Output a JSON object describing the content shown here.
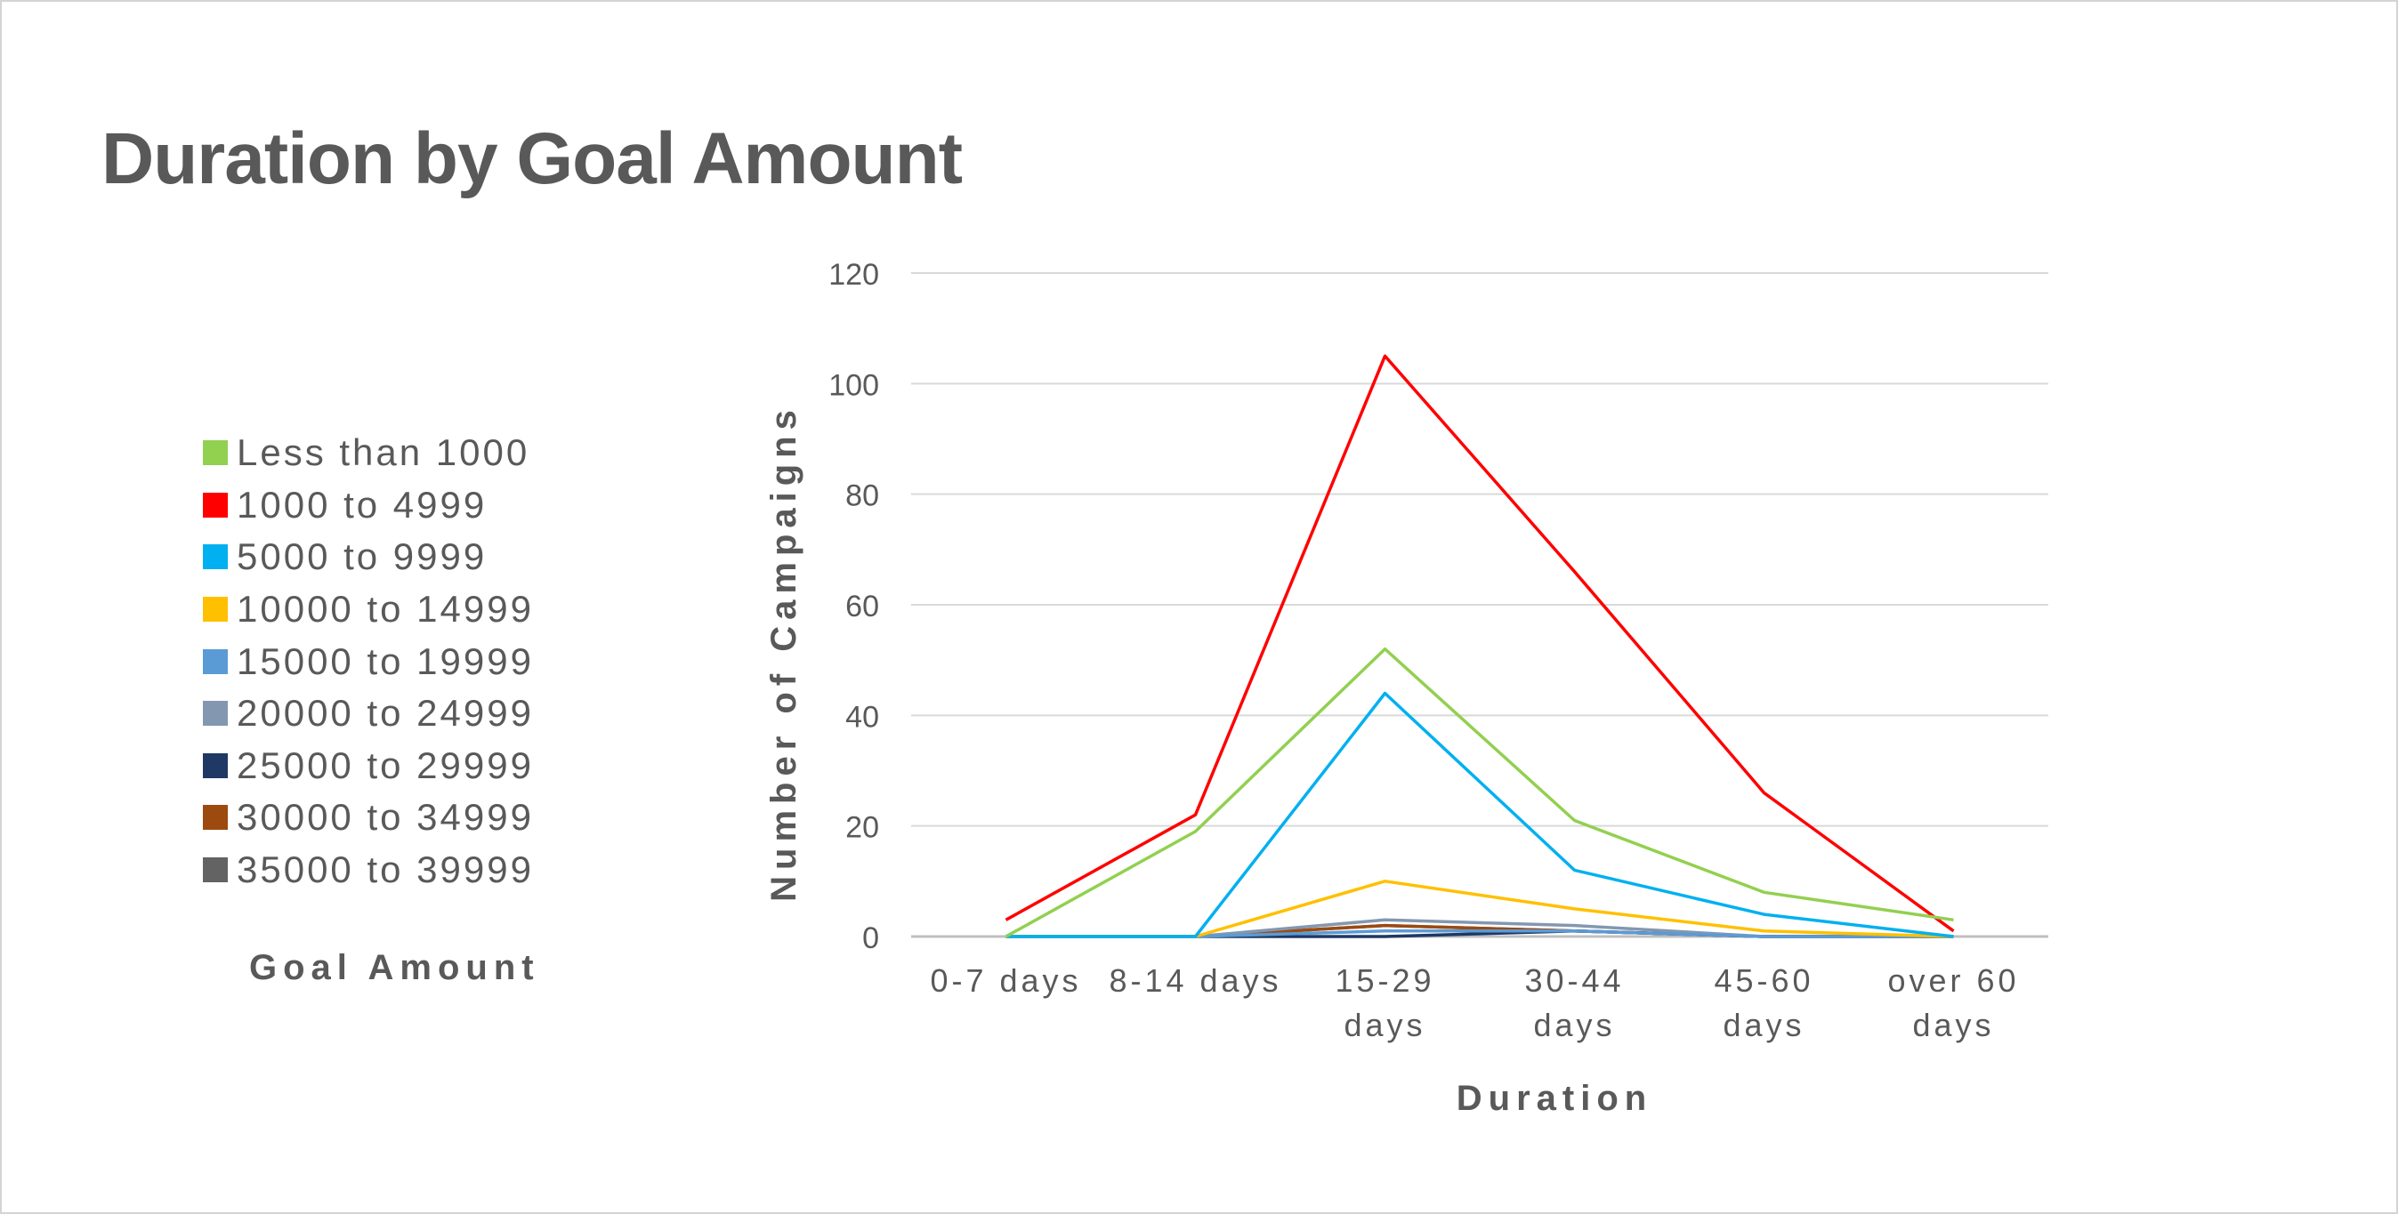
{
  "chart_data": {
    "type": "line",
    "title": "Duration by Goal Amount",
    "xlabel": "Duration",
    "ylabel": "Number of Campaigns",
    "legend_title": "Goal Amount",
    "legend_position": "left",
    "grid": true,
    "ylim": [
      0,
      120
    ],
    "yticks": [
      0,
      20,
      40,
      60,
      80,
      100,
      120
    ],
    "categories": [
      [
        "0-7 days"
      ],
      [
        "8-14 days"
      ],
      [
        "15-29",
        "days"
      ],
      [
        "30-44",
        "days"
      ],
      [
        "45-60",
        "days"
      ],
      [
        "over 60",
        "days"
      ]
    ],
    "series": [
      {
        "name": "Less than 1000",
        "color": "#92d050",
        "values": [
          0,
          19,
          52,
          21,
          8,
          3
        ]
      },
      {
        "name": "1000 to 4999",
        "color": "#ff0000",
        "values": [
          3,
          22,
          105,
          66,
          26,
          1
        ]
      },
      {
        "name": "5000 to 9999",
        "color": "#00b0f0",
        "values": [
          0,
          0,
          44,
          12,
          4,
          0
        ]
      },
      {
        "name": "10000 to 14999",
        "color": "#ffc000",
        "values": [
          0,
          0,
          10,
          5,
          1,
          0
        ]
      },
      {
        "name": "15000 to 19999",
        "color": "#5b9bd5",
        "values": [
          0,
          0,
          1,
          1,
          0,
          0
        ]
      },
      {
        "name": "20000 to 24999",
        "color": "#8497b0",
        "values": [
          0,
          0,
          3,
          2,
          0,
          0
        ]
      },
      {
        "name": "25000 to 29999",
        "color": "#1f3864",
        "values": [
          0,
          0,
          0,
          1,
          0,
          0
        ]
      },
      {
        "name": "30000 to 34999",
        "color": "#9c4a10",
        "values": [
          0,
          0,
          2,
          1,
          0,
          0
        ]
      },
      {
        "name": "35000 to 39999",
        "color": "#636363",
        "values": [
          0,
          0,
          2,
          1,
          0,
          0
        ]
      }
    ]
  }
}
